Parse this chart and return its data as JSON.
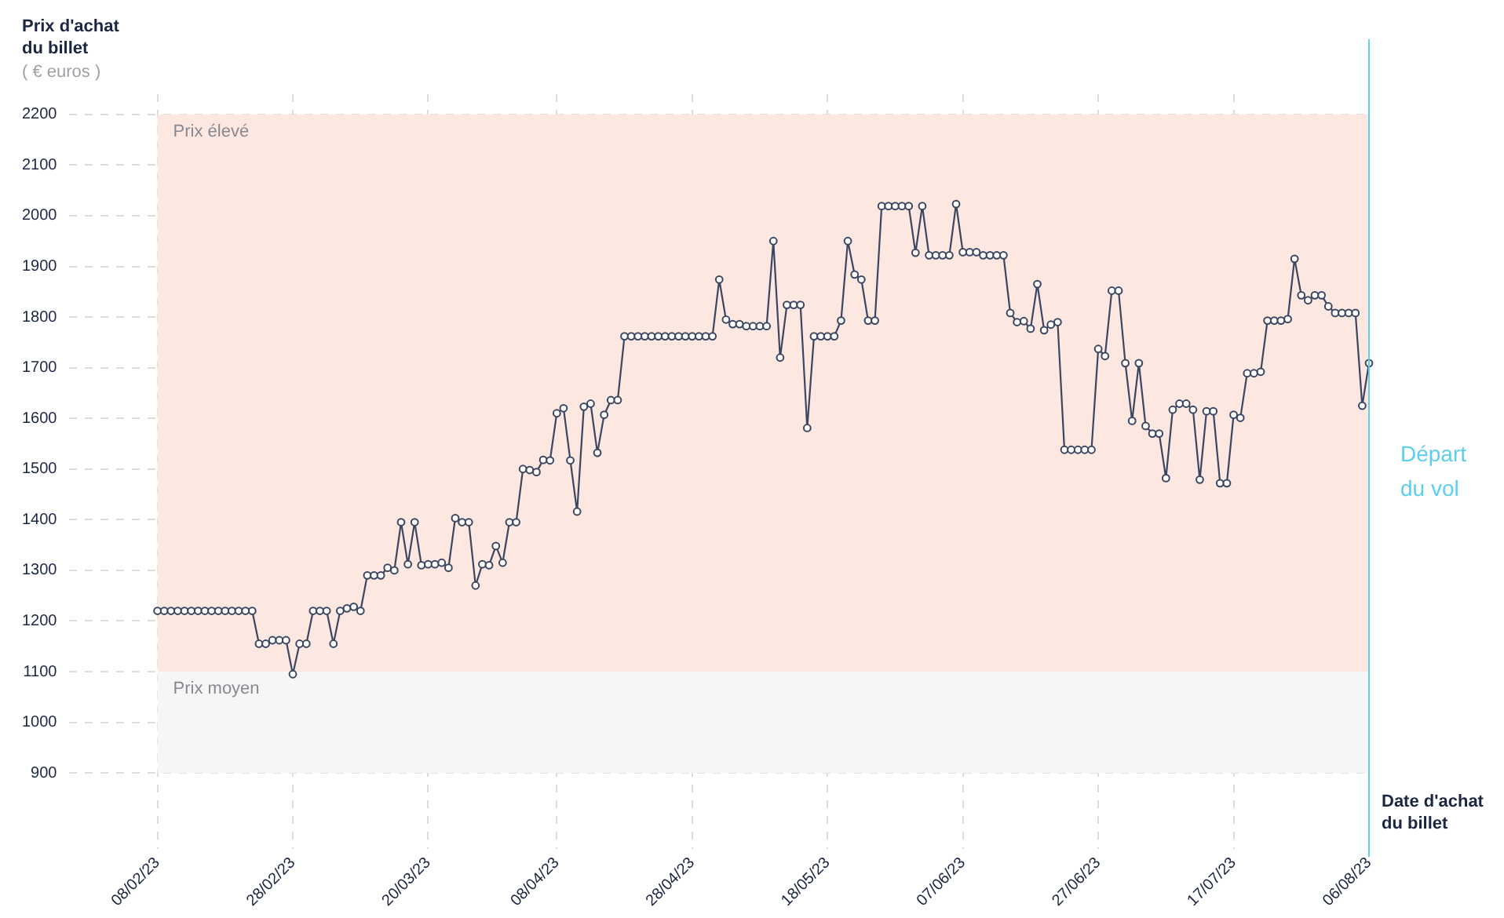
{
  "chart_data": {
    "type": "line",
    "ylabel": "Prix d'achat du billet",
    "xlabel": "Date d'achat du billet",
    "annotations": [
      "( € euros )"
    ],
    "x": [
      "2023-02-08",
      "2023-02-09",
      "2023-02-10",
      "2023-02-11",
      "2023-02-12",
      "2023-02-13",
      "2023-02-14",
      "2023-02-15",
      "2023-02-16",
      "2023-02-17",
      "2023-02-18",
      "2023-02-19",
      "2023-02-20",
      "2023-02-21",
      "2023-02-22",
      "2023-02-23",
      "2023-02-24",
      "2023-02-25",
      "2023-02-26",
      "2023-02-27",
      "2023-02-28",
      "2023-03-01",
      "2023-03-02",
      "2023-03-03",
      "2023-03-04",
      "2023-03-05",
      "2023-03-06",
      "2023-03-07",
      "2023-03-08",
      "2023-03-09",
      "2023-03-10",
      "2023-03-11",
      "2023-03-12",
      "2023-03-13",
      "2023-03-14",
      "2023-03-15",
      "2023-03-16",
      "2023-03-17",
      "2023-03-18",
      "2023-03-19",
      "2023-03-20",
      "2023-03-21",
      "2023-03-22",
      "2023-03-23",
      "2023-03-24",
      "2023-03-25",
      "2023-03-26",
      "2023-03-27",
      "2023-03-28",
      "2023-03-29",
      "2023-03-30",
      "2023-03-31",
      "2023-04-01",
      "2023-04-02",
      "2023-04-03",
      "2023-04-04",
      "2023-04-05",
      "2023-04-06",
      "2023-04-07",
      "2023-04-08",
      "2023-04-09",
      "2023-04-10",
      "2023-04-11",
      "2023-04-12",
      "2023-04-13",
      "2023-04-14",
      "2023-04-15",
      "2023-04-16",
      "2023-04-17",
      "2023-04-18",
      "2023-04-19",
      "2023-04-20",
      "2023-04-21",
      "2023-04-22",
      "2023-04-23",
      "2023-04-24",
      "2023-04-25",
      "2023-04-26",
      "2023-04-27",
      "2023-04-28",
      "2023-04-29",
      "2023-04-30",
      "2023-05-01",
      "2023-05-02",
      "2023-05-03",
      "2023-05-04",
      "2023-05-05",
      "2023-05-06",
      "2023-05-07",
      "2023-05-08",
      "2023-05-09",
      "2023-05-10",
      "2023-05-11",
      "2023-05-12",
      "2023-05-13",
      "2023-05-14",
      "2023-05-15",
      "2023-05-16",
      "2023-05-17",
      "2023-05-18",
      "2023-05-19",
      "2023-05-20",
      "2023-05-21",
      "2023-05-22",
      "2023-05-23",
      "2023-05-24",
      "2023-05-25",
      "2023-05-26",
      "2023-05-27",
      "2023-05-28",
      "2023-05-29",
      "2023-05-30",
      "2023-05-31",
      "2023-06-01",
      "2023-06-02",
      "2023-06-03",
      "2023-06-04",
      "2023-06-05",
      "2023-06-06",
      "2023-06-07",
      "2023-06-08",
      "2023-06-09",
      "2023-06-10",
      "2023-06-11",
      "2023-06-12",
      "2023-06-13",
      "2023-06-14",
      "2023-06-15",
      "2023-06-16",
      "2023-06-17",
      "2023-06-18",
      "2023-06-19",
      "2023-06-20",
      "2023-06-21",
      "2023-06-22",
      "2023-06-23",
      "2023-06-24",
      "2023-06-25",
      "2023-06-26",
      "2023-06-27",
      "2023-06-28",
      "2023-06-29",
      "2023-06-30",
      "2023-07-01",
      "2023-07-02",
      "2023-07-03",
      "2023-07-04",
      "2023-07-05",
      "2023-07-06",
      "2023-07-07",
      "2023-07-08",
      "2023-07-09",
      "2023-07-10",
      "2023-07-11",
      "2023-07-12",
      "2023-07-13",
      "2023-07-14",
      "2023-07-15",
      "2023-07-16",
      "2023-07-17",
      "2023-07-18",
      "2023-07-19",
      "2023-07-20",
      "2023-07-21",
      "2023-07-22",
      "2023-07-23",
      "2023-07-24",
      "2023-07-25",
      "2023-07-26",
      "2023-07-27",
      "2023-07-28",
      "2023-07-29",
      "2023-07-30",
      "2023-07-31",
      "2023-08-01",
      "2023-08-02",
      "2023-08-03",
      "2023-08-04",
      "2023-08-05",
      "2023-08-06"
    ],
    "series": [
      {
        "color": "#3b4660",
        "values": [
          1220,
          1220,
          1220,
          1220,
          1220,
          1220,
          1220,
          1220,
          1220,
          1220,
          1220,
          1220,
          1220,
          1220,
          1220,
          1155,
          1155,
          1162,
          1162,
          1162,
          1095,
          1155,
          1155,
          1220,
          1220,
          1220,
          1155,
          1220,
          1225,
          1228,
          1220,
          1290,
          1290,
          1290,
          1305,
          1300,
          1395,
          1312,
          1395,
          1310,
          1312,
          1312,
          1315,
          1305,
          1403,
          1395,
          1395,
          1270,
          1312,
          1310,
          1348,
          1315,
          1395,
          1395,
          1500,
          1498,
          1494,
          1518,
          1517,
          1610,
          1620,
          1517,
          1416,
          1623,
          1629,
          1532,
          1607,
          1636,
          1636,
          1762,
          1762,
          1762,
          1762,
          1762,
          1762,
          1762,
          1762,
          1762,
          1762,
          1762,
          1762,
          1762,
          1762,
          1874,
          1795,
          1786,
          1786,
          1782,
          1782,
          1782,
          1782,
          1950,
          1720,
          1824,
          1824,
          1824,
          1581,
          1762,
          1762,
          1762,
          1762,
          1793,
          1950,
          1884,
          1874,
          1793,
          1793,
          2019,
          2019,
          2019,
          2019,
          2019,
          1927,
          2019,
          1922,
          1922,
          1922,
          1922,
          2023,
          1928,
          1928,
          1928,
          1922,
          1922,
          1922,
          1922,
          1808,
          1790,
          1792,
          1777,
          1865,
          1774,
          1785,
          1790,
          1538,
          1538,
          1538,
          1538,
          1538,
          1737,
          1723,
          1852,
          1852,
          1709,
          1595,
          1709,
          1585,
          1570,
          1570,
          1482,
          1617,
          1629,
          1629,
          1617,
          1479,
          1614,
          1614,
          1472,
          1472,
          1607,
          1601,
          1689,
          1689,
          1692,
          1793,
          1793,
          1793,
          1796,
          1915,
          1843,
          1833,
          1843,
          1843,
          1821,
          1808,
          1808,
          1808,
          1808,
          1625,
          1709
        ]
      }
    ],
    "xlim": [
      "2023-01-26",
      "2023-08-06"
    ],
    "xticks": [
      {
        "value": "2023-02-08",
        "label": "08/02/23"
      },
      {
        "value": "2023-02-28",
        "label": "28/02/23"
      },
      {
        "value": "2023-03-20",
        "label": "20/03/23"
      },
      {
        "value": "2023-04-08",
        "label": "08/04/23"
      },
      {
        "value": "2023-04-28",
        "label": "28/04/23"
      },
      {
        "value": "2023-05-18",
        "label": "18/05/23"
      },
      {
        "value": "2023-06-07",
        "label": "07/06/23"
      },
      {
        "value": "2023-06-27",
        "label": "27/06/23"
      },
      {
        "value": "2023-07-17",
        "label": "17/07/23"
      },
      {
        "value": "2023-08-06",
        "label": "06/08/23"
      }
    ],
    "ylim": [
      750,
      2240
    ],
    "yticks": [
      900,
      1000,
      1100,
      1200,
      1300,
      1400,
      1500,
      1600,
      1700,
      1800,
      1900,
      2000,
      2100,
      2200
    ],
    "bands": [
      {
        "axis": "y",
        "from": 1100,
        "to": 2200,
        "label": "Prix élevé",
        "color": "#fde7e1"
      },
      {
        "axis": "y",
        "from": 900,
        "to": 1100,
        "label": "Prix moyen",
        "color": "#f6f6f6"
      }
    ],
    "ref_lines": [
      {
        "axis": "x",
        "value": "2023-08-06",
        "label": "Départ du vol",
        "color": "#5ccfee"
      }
    ],
    "grid": true,
    "legend": false,
    "marker": "circle",
    "line_style": "solid"
  }
}
